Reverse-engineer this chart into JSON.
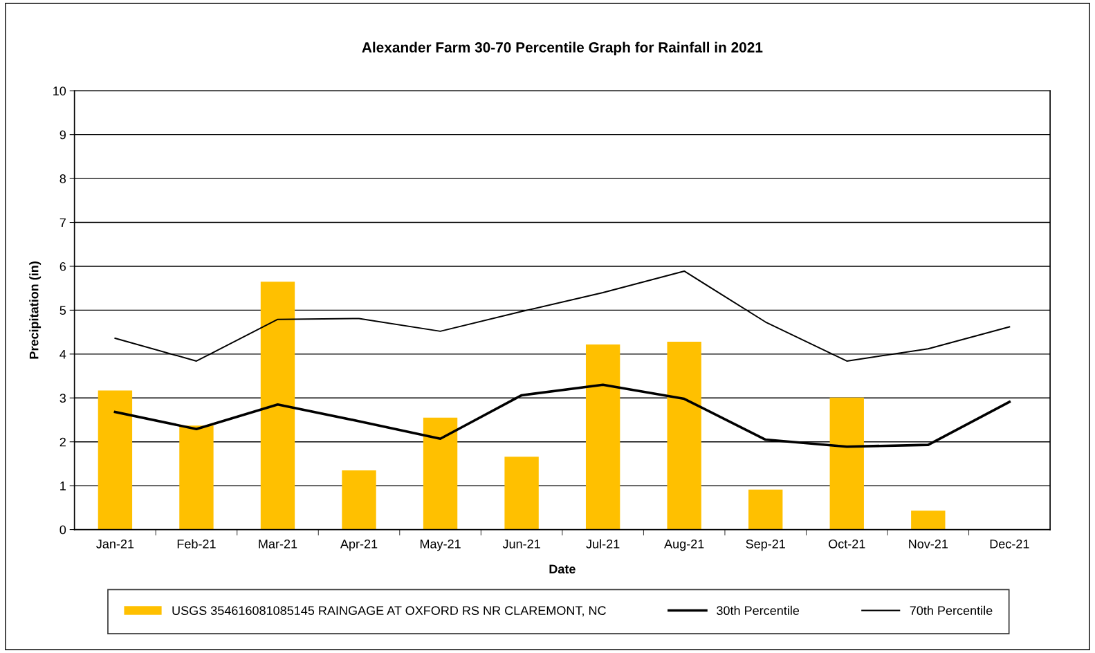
{
  "chart_data": {
    "type": "bar",
    "title": "Alexander Farm 30-70 Percentile Graph for Rainfall in 2021",
    "xlabel": "Date",
    "ylabel": "Precipitation (in)",
    "categories": [
      "Jan-21",
      "Feb-21",
      "Mar-21",
      "Apr-21",
      "May-21",
      "Jun-21",
      "Jul-21",
      "Aug-21",
      "Sep-21",
      "Oct-21",
      "Nov-21",
      "Dec-21"
    ],
    "series": [
      {
        "name": "USGS 354616081085145 RAINGAGE AT OXFORD RS NR CLAREMONT, NC",
        "color": "#ffc000",
        "values": [
          3.17,
          2.37,
          5.65,
          1.35,
          2.55,
          1.66,
          4.22,
          4.28,
          0.91,
          3.01,
          0.43,
          null
        ]
      },
      {
        "name": "30th Percentile",
        "type": "line",
        "color": "#000000",
        "values": [
          2.68,
          2.29,
          2.85,
          2.47,
          2.07,
          3.06,
          3.3,
          2.98,
          2.05,
          1.89,
          1.93,
          2.91
        ]
      },
      {
        "name": "70th Percentile",
        "type": "line",
        "color": "#000000",
        "values": [
          4.36,
          3.84,
          4.79,
          4.81,
          4.52,
          4.97,
          5.4,
          5.89,
          4.73,
          3.84,
          4.12,
          4.62
        ]
      }
    ],
    "ylim": [
      0,
      10
    ],
    "yticks": [
      0,
      1,
      2,
      3,
      4,
      5,
      6,
      7,
      8,
      9,
      10
    ],
    "grid": "y",
    "legend": "bottom",
    "marker": "none",
    "line_style": "solid"
  }
}
